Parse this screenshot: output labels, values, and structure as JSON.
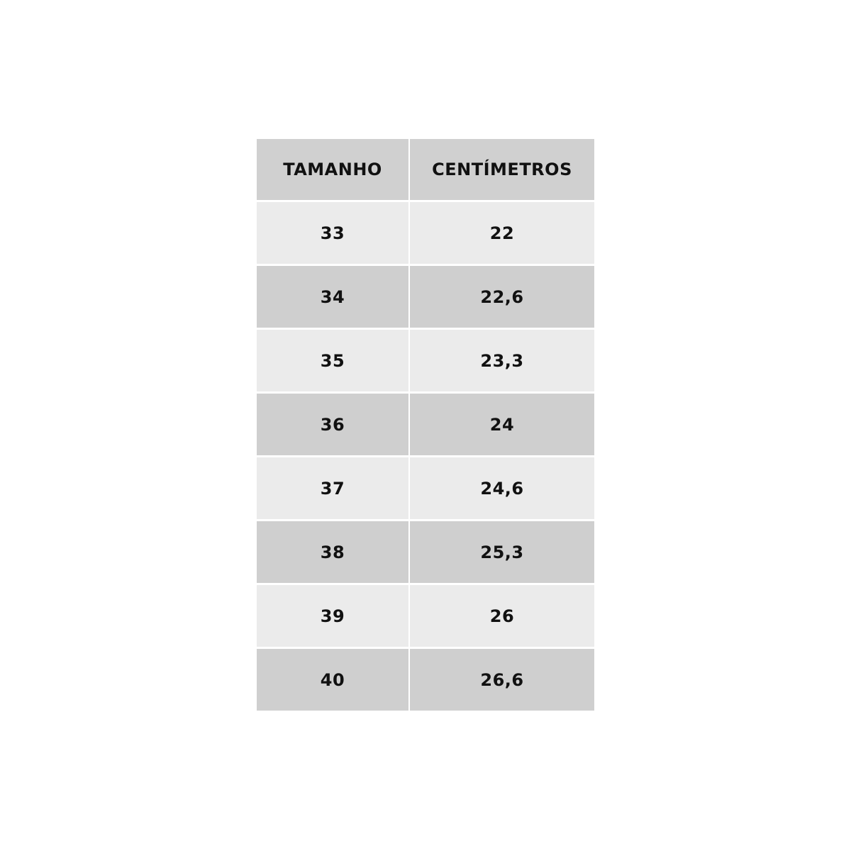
{
  "table": {
    "headers": [
      "TAMANHO",
      "CENTÍMETROS"
    ],
    "rows": [
      [
        "33",
        "22"
      ],
      [
        "34",
        "22,6"
      ],
      [
        "35",
        "23,3"
      ],
      [
        "36",
        "24"
      ],
      [
        "37",
        "24,6"
      ],
      [
        "38",
        "25,3"
      ],
      [
        "39",
        "26"
      ],
      [
        "40",
        "26,6"
      ]
    ]
  },
  "colors": {
    "header": "#d0d0d0",
    "row_light": "#ebebeb",
    "row_dark": "#cfcfcf"
  }
}
